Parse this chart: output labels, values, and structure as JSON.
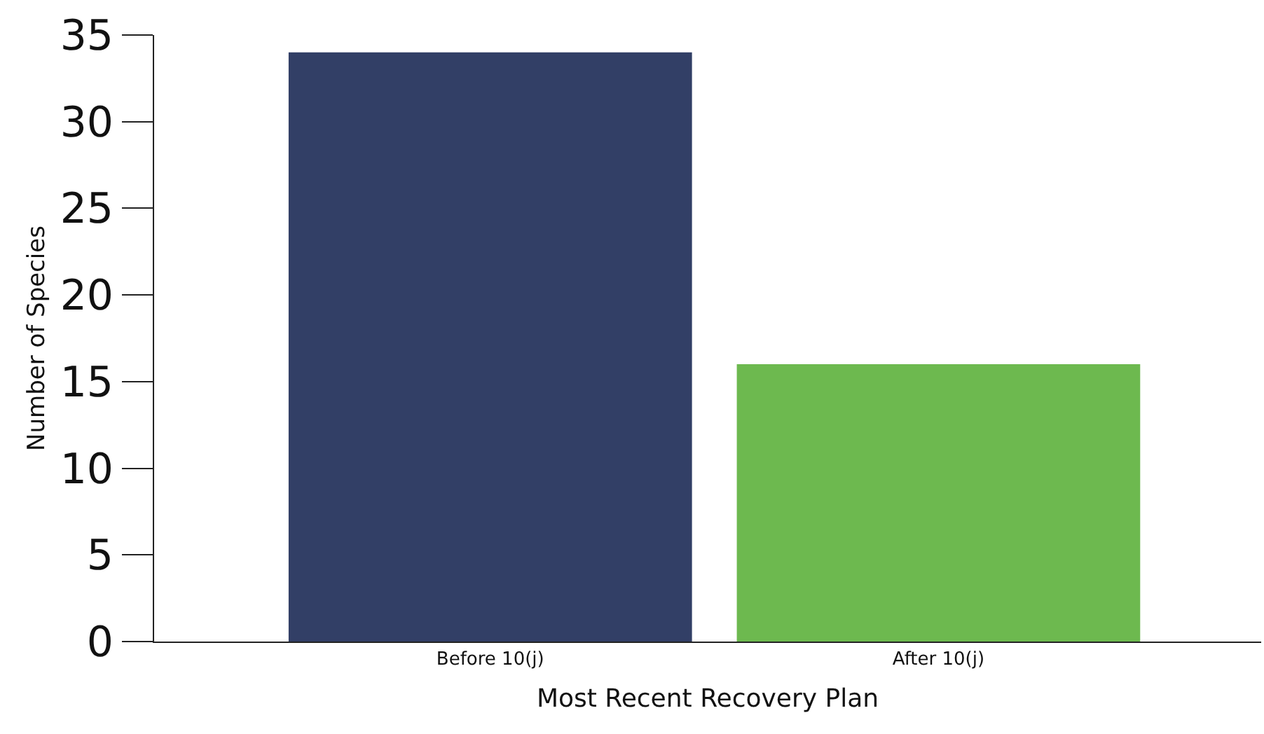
{
  "chart_data": {
    "type": "bar",
    "xlabel": "Most Recent Recovery Plan",
    "ylabel": "Number of Species",
    "categories": [
      "Before 10(j)",
      "After 10(j)"
    ],
    "values": [
      34,
      16
    ],
    "colors": [
      "#323f66",
      "#6db94f"
    ],
    "ylim": [
      0,
      35
    ],
    "yticks": [
      0,
      5,
      10,
      15,
      20,
      25,
      30,
      35
    ],
    "legend": false
  }
}
